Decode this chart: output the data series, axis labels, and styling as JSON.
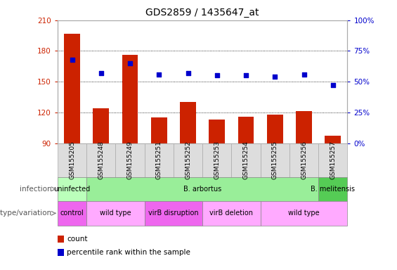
{
  "title": "GDS2859 / 1435647_at",
  "samples": [
    "GSM155205",
    "GSM155248",
    "GSM155249",
    "GSM155251",
    "GSM155252",
    "GSM155253",
    "GSM155254",
    "GSM155255",
    "GSM155256",
    "GSM155257"
  ],
  "bar_values": [
    197,
    124,
    176,
    115,
    130,
    113,
    116,
    118,
    121,
    97
  ],
  "dot_values": [
    68,
    57,
    65,
    56,
    57,
    55,
    55,
    54,
    56,
    47
  ],
  "ylim_left": [
    90,
    210
  ],
  "yticks_left": [
    90,
    120,
    150,
    180,
    210
  ],
  "ylim_right": [
    0,
    100
  ],
  "yticks_right": [
    0,
    25,
    50,
    75,
    100
  ],
  "bar_color": "#cc2200",
  "dot_color": "#0000cc",
  "infection_groups": [
    {
      "label": "uninfected",
      "start": 0,
      "end": 1,
      "color": "#bbffbb"
    },
    {
      "label": "B. arbortus",
      "start": 1,
      "end": 9,
      "color": "#99ee99"
    },
    {
      "label": "B. melitensis",
      "start": 9,
      "end": 10,
      "color": "#55cc55"
    }
  ],
  "genotype_groups": [
    {
      "label": "control",
      "start": 0,
      "end": 1,
      "color": "#ee66ee"
    },
    {
      "label": "wild type",
      "start": 1,
      "end": 3,
      "color": "#ffaaff"
    },
    {
      "label": "virB disruption",
      "start": 3,
      "end": 5,
      "color": "#ee66ee"
    },
    {
      "label": "virB deletion",
      "start": 5,
      "end": 7,
      "color": "#ffaaff"
    },
    {
      "label": "wild type",
      "start": 7,
      "end": 10,
      "color": "#ffaaff"
    }
  ],
  "legend_count_color": "#cc2200",
  "legend_dot_color": "#0000cc",
  "row_label_infection": "infection",
  "row_label_genotype": "genotype/variation",
  "legend_count_label": "count",
  "legend_dot_label": "percentile rank within the sample",
  "background_color": "#ffffff",
  "grid_color": "#000000",
  "tick_label_gray": "#aaaaaa",
  "sample_label_bg": "#dddddd"
}
